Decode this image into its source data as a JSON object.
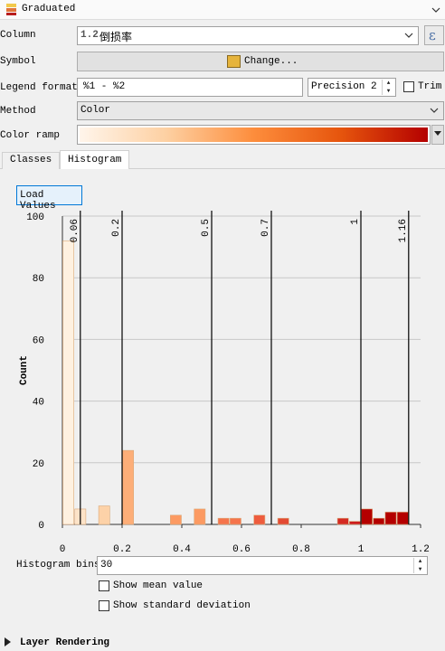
{
  "header": {
    "title": "Graduated"
  },
  "column": {
    "label": "Column",
    "type_badge": "1.2",
    "value": "倒损率"
  },
  "symbol": {
    "label": "Symbol",
    "button": "Change..."
  },
  "legend_format": {
    "label": "Legend format",
    "value": "%1 - %2",
    "precision": "Precision 2",
    "trim": "Trim"
  },
  "method": {
    "label": "Method",
    "value": "Color"
  },
  "color_ramp": {
    "label": "Color ramp"
  },
  "tabs": [
    {
      "label": "Classes"
    },
    {
      "label": "Histogram"
    }
  ],
  "load_values": "Load Values",
  "histogram_bins": {
    "label": "Histogram bins",
    "value": "30"
  },
  "show_mean": "Show mean value",
  "show_std": "Show standard deviation",
  "layer_rendering": "Layer Rendering",
  "colors": {
    "symbol_fill": "#e6b43c",
    "ramp_start": "#fff5eb",
    "ramp_end": "#b40000",
    "accent": "#0078d7"
  },
  "chart_data": {
    "type": "bar",
    "xlabel": "",
    "ylabel": "Count",
    "xlim": [
      0,
      1.2
    ],
    "ylim": [
      0,
      100
    ],
    "xticks": [
      "0",
      "0.2",
      "0.4",
      "0.6",
      "0.8",
      "1",
      "1.2"
    ],
    "yticks": [
      "0",
      "20",
      "40",
      "60",
      "80",
      "100"
    ],
    "bars": [
      {
        "x0": 0.0,
        "x1": 0.04,
        "value": 92,
        "color": "#fff1e0"
      },
      {
        "x0": 0.04,
        "x1": 0.08,
        "value": 5,
        "color": "#fde3c8"
      },
      {
        "x0": 0.12,
        "x1": 0.16,
        "value": 6,
        "color": "#fdd2a8"
      },
      {
        "x0": 0.2,
        "x1": 0.24,
        "value": 24,
        "color": "#fdae78"
      },
      {
        "x0": 0.36,
        "x1": 0.4,
        "value": 3,
        "color": "#fc9a62"
      },
      {
        "x0": 0.44,
        "x1": 0.48,
        "value": 5,
        "color": "#fc9a62"
      },
      {
        "x0": 0.52,
        "x1": 0.56,
        "value": 2,
        "color": "#f5744c"
      },
      {
        "x0": 0.56,
        "x1": 0.6,
        "value": 2,
        "color": "#f5744c"
      },
      {
        "x0": 0.64,
        "x1": 0.68,
        "value": 3,
        "color": "#ee5c3e"
      },
      {
        "x0": 0.72,
        "x1": 0.76,
        "value": 2,
        "color": "#e34a33"
      },
      {
        "x0": 0.92,
        "x1": 0.96,
        "value": 2,
        "color": "#d42a22"
      },
      {
        "x0": 0.96,
        "x1": 1.0,
        "value": 1,
        "color": "#cc1c1c"
      },
      {
        "x0": 1.0,
        "x1": 1.04,
        "value": 5,
        "color": "#b40000"
      },
      {
        "x0": 1.04,
        "x1": 1.08,
        "value": 2,
        "color": "#b40000"
      },
      {
        "x0": 1.08,
        "x1": 1.12,
        "value": 4,
        "color": "#b40000"
      },
      {
        "x0": 1.12,
        "x1": 1.16,
        "value": 4,
        "color": "#b40000"
      }
    ],
    "breaks": [
      {
        "x": 0.06,
        "label": "0.06"
      },
      {
        "x": 0.2,
        "label": "0.2"
      },
      {
        "x": 0.5,
        "label": "0.5"
      },
      {
        "x": 0.7,
        "label": "0.7"
      },
      {
        "x": 1.0,
        "label": "1"
      },
      {
        "x": 1.16,
        "label": "1.16"
      }
    ]
  }
}
